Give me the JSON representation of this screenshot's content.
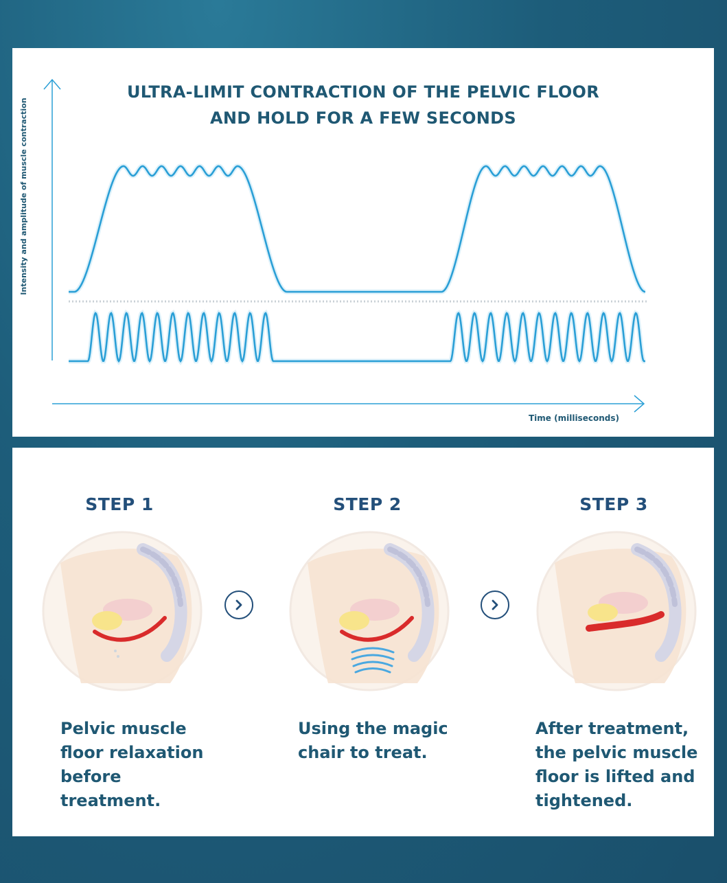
{
  "chart": {
    "title_line1": "ULTRA-LIMIT CONTRACTION OF THE PELVIC FLOOR",
    "title_line2": "AND HOLD FOR A FEW SECONDS",
    "ylabel": "Intensity and amplitude of muscle contraction",
    "xlabel": "Time (milliseconds)",
    "line_color": "#2a9fd6"
  },
  "chart_data": {
    "type": "line",
    "title": "ULTRA-LIMIT CONTRACTION OF THE PELVIC FLOOR AND HOLD FOR A FEW SECONDS",
    "xlabel": "Time (milliseconds)",
    "ylabel": "Intensity and amplitude of muscle contraction",
    "series": [],
    "grid": false
  },
  "steps": [
    {
      "title": "STEP 1",
      "description_lines": [
        "Pelvic muscle",
        "floor relaxation",
        "before treatment."
      ]
    },
    {
      "title": "STEP 2",
      "description_lines": [
        "Using the magic",
        "chair to treat."
      ]
    },
    {
      "title": "STEP 3",
      "description_lines": [
        "After treatment,",
        "the pelvic muscle",
        "floor is lifted and",
        "tightened."
      ]
    }
  ],
  "colors": {
    "background": "#1d5d7a",
    "heading": "#1f5873",
    "step_title": "#234f7a",
    "muscle_red": "#d92b2b",
    "wave_blue": "#2a9fd6"
  },
  "icons": [
    "chevron-right-icon",
    "chevron-right-icon"
  ]
}
